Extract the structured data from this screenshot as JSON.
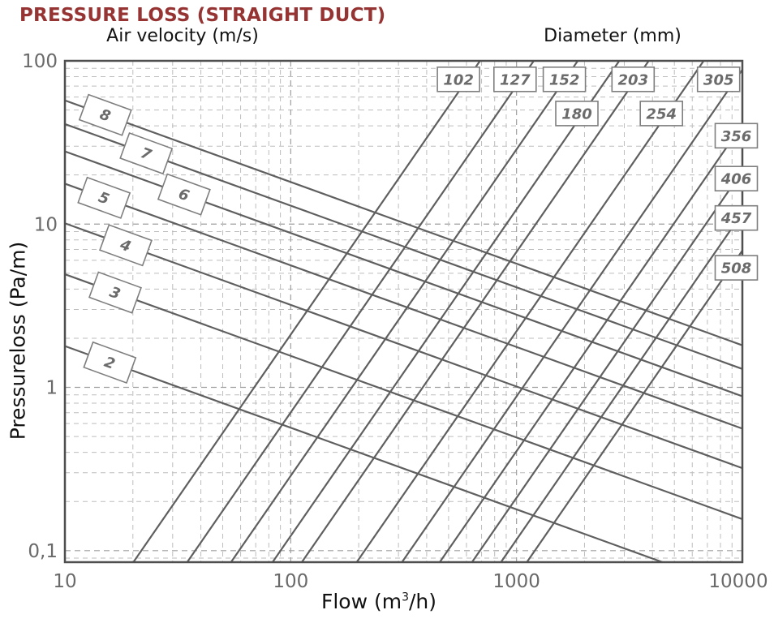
{
  "page_title": "PRESSURE LOSS (STRAIGHT DUCT)",
  "axis_titles": {
    "top_left": "Air velocity (m/s)",
    "top_right": "Diameter (mm)",
    "y": "Pressureloss (Pa/m)",
    "x_pre": "Flow (m",
    "x_sup": "3",
    "x_post": "/h)"
  },
  "colors": {
    "title_accent": "#963333",
    "curve_line": "#5f5f5f",
    "frame": "#4f4f4f",
    "grid_major": "#9f9f9f",
    "grid_minor": "#bdbdbd",
    "tick_text": "#6a6a6a",
    "line_label_text": "#6b6b6b",
    "line_label_border": "#7e7e7e"
  },
  "chart_data": {
    "type": "line",
    "title": "PRESSURE LOSS (STRAIGHT DUCT)",
    "xlabel": "Flow (m3/h)",
    "ylabel": "Pressureloss (Pa/m)",
    "x_scale": "log",
    "y_scale": "log",
    "xlim": [
      10,
      10000
    ],
    "ylim": [
      0.085,
      100
    ],
    "grid": "dashed, major and minor log gridlines",
    "legend": "labels in boxes on lines; velocity family labeled top-left, diameter family labeled top and right",
    "x_ticks": [
      {
        "v": 10,
        "label": "10"
      },
      {
        "v": 100,
        "label": "100"
      },
      {
        "v": 1000,
        "label": "1000"
      },
      {
        "v": 10000,
        "label": "10000"
      }
    ],
    "y_ticks": [
      {
        "v": 100,
        "label": "100"
      },
      {
        "v": 10,
        "label": "10"
      },
      {
        "v": 1,
        "label": "1"
      },
      {
        "v": 0.1,
        "label": "0,1"
      }
    ],
    "series": [
      {
        "group": "air-velocity",
        "unit": "m/s",
        "label": "2",
        "value": 2,
        "points": [
          [
            10,
            1.79
          ],
          [
            4429,
            0.085
          ]
        ],
        "label_at": [
          15.8,
          1.42
        ]
      },
      {
        "group": "air-velocity",
        "unit": "m/s",
        "label": "3",
        "value": 3,
        "points": [
          [
            10,
            4.93
          ],
          [
            10000,
            0.156
          ]
        ],
        "label_at": [
          16.7,
          3.81
        ]
      },
      {
        "group": "air-velocity",
        "unit": "m/s",
        "label": "4",
        "value": 4,
        "points": [
          [
            10,
            10.12
          ],
          [
            10000,
            0.32
          ]
        ],
        "label_at": [
          18.6,
          7.42
        ]
      },
      {
        "group": "air-velocity",
        "unit": "m/s",
        "label": "5",
        "value": 5,
        "points": [
          [
            10,
            17.68
          ],
          [
            10000,
            0.559
          ]
        ],
        "label_at": [
          14.9,
          14.5
        ]
      },
      {
        "group": "air-velocity",
        "unit": "m/s",
        "label": "6",
        "value": 6,
        "points": [
          [
            10,
            27.89
          ],
          [
            10000,
            0.882
          ]
        ],
        "label_at": [
          33.7,
          15.2
        ]
      },
      {
        "group": "air-velocity",
        "unit": "m/s",
        "label": "7",
        "value": 7,
        "points": [
          [
            10,
            41.01
          ],
          [
            10000,
            1.297
          ]
        ],
        "label_at": [
          22.9,
          27.1
        ]
      },
      {
        "group": "air-velocity",
        "unit": "m/s",
        "label": "8",
        "value": 8,
        "points": [
          [
            10,
            57.24
          ],
          [
            10000,
            1.81
          ]
        ],
        "label_at": [
          15.1,
          46.6
        ]
      },
      {
        "group": "diameter",
        "unit": "mm",
        "label": "102",
        "value": 102,
        "points": [
          [
            20.1,
            0.085
          ],
          [
            689,
            100
          ]
        ],
        "label_at": [
          553,
          77
        ]
      },
      {
        "group": "diameter",
        "unit": "mm",
        "label": "127",
        "value": 127,
        "points": [
          [
            34.8,
            0.085
          ],
          [
            1192,
            100
          ]
        ],
        "label_at": [
          985,
          77
        ]
      },
      {
        "group": "diameter",
        "unit": "mm",
        "label": "152",
        "value": 152,
        "points": [
          [
            54.4,
            0.085
          ],
          [
            1867,
            100
          ]
        ],
        "label_at": [
          1628,
          77
        ]
      },
      {
        "group": "diameter",
        "unit": "mm",
        "label": "180",
        "value": 180,
        "points": [
          [
            83.1,
            0.085
          ],
          [
            2850,
            100
          ]
        ],
        "label_at": [
          1850,
          47.6
        ]
      },
      {
        "group": "diameter",
        "unit": "mm",
        "label": "203",
        "value": 203,
        "points": [
          [
            112,
            0.085
          ],
          [
            3849,
            100
          ]
        ],
        "label_at": [
          3280,
          77
        ]
      },
      {
        "group": "diameter",
        "unit": "mm",
        "label": "254",
        "value": 254,
        "points": [
          [
            196,
            0.085
          ],
          [
            6740,
            100
          ]
        ],
        "label_at": [
          4380,
          47.6
        ]
      },
      {
        "group": "diameter",
        "unit": "mm",
        "label": "305",
        "value": 305,
        "points": [
          [
            311,
            0.085
          ],
          [
            10000,
            88.2
          ]
        ],
        "label_at": [
          7850,
          77
        ]
      },
      {
        "group": "diameter",
        "unit": "mm",
        "label": "356",
        "value": 356,
        "points": [
          [
            457,
            0.085
          ],
          [
            10000,
            40.7
          ]
        ],
        "label_at": [
          9400,
          34.8
        ]
      },
      {
        "group": "diameter",
        "unit": "mm",
        "label": "406",
        "value": 406,
        "points": [
          [
            635,
            0.085
          ],
          [
            10000,
            21.1
          ]
        ],
        "label_at": [
          9400,
          19.0
        ]
      },
      {
        "group": "diameter",
        "unit": "mm",
        "label": "457",
        "value": 457,
        "points": [
          [
            853,
            0.085
          ],
          [
            10000,
            11.7
          ]
        ],
        "label_at": [
          9400,
          10.9
        ]
      },
      {
        "group": "diameter",
        "unit": "mm",
        "label": "508",
        "value": 508,
        "points": [
          [
            1111,
            0.085
          ],
          [
            10000,
            6.89
          ]
        ],
        "label_at": [
          9400,
          5.4
        ]
      }
    ]
  }
}
